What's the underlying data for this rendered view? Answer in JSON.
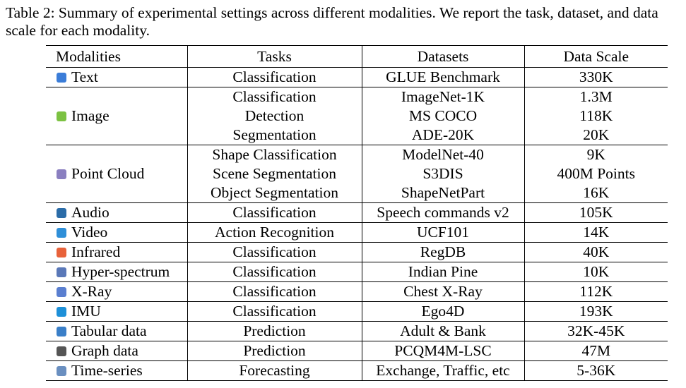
{
  "caption": "Table 2: Summary of experimental settings across different modalities. We report the task, dataset, and data scale for each modality.",
  "table": {
    "header": [
      "Modalities",
      "Tasks",
      "Datasets",
      "Data Scale"
    ],
    "groups": [
      {
        "modality": "Text",
        "tasks": [
          "Classification"
        ],
        "datasets": [
          "GLUE Benchmark"
        ],
        "scales": [
          "330K"
        ]
      },
      {
        "modality": "Image",
        "tasks": [
          "Classification",
          "Detection",
          "Segmentation"
        ],
        "datasets": [
          "ImageNet-1K",
          "MS COCO",
          "ADE-20K"
        ],
        "scales": [
          "1.3M",
          "118K",
          "20K"
        ]
      },
      {
        "modality": "Point Cloud",
        "tasks": [
          "Shape Classification",
          "Scene Segmentation",
          "Object Segmentation"
        ],
        "datasets": [
          "ModelNet-40",
          "S3DIS",
          "ShapeNetPart"
        ],
        "scales": [
          "9K",
          "400M Points",
          "16K"
        ]
      },
      {
        "modality": "Audio",
        "tasks": [
          "Classification"
        ],
        "datasets": [
          "Speech commands v2"
        ],
        "scales": [
          "105K"
        ]
      },
      {
        "modality": "Video",
        "tasks": [
          "Action Recognition"
        ],
        "datasets": [
          "UCF101"
        ],
        "scales": [
          "14K"
        ]
      },
      {
        "modality": "Infrared",
        "tasks": [
          "Classification"
        ],
        "datasets": [
          "RegDB"
        ],
        "scales": [
          "40K"
        ]
      },
      {
        "modality": "Hyper-spectrum",
        "tasks": [
          "Classification"
        ],
        "datasets": [
          "Indian Pine"
        ],
        "scales": [
          "10K"
        ]
      },
      {
        "modality": "X-Ray",
        "tasks": [
          "Classification"
        ],
        "datasets": [
          "Chest X-Ray"
        ],
        "scales": [
          "112K"
        ]
      },
      {
        "modality": "IMU",
        "tasks": [
          "Classification"
        ],
        "datasets": [
          "Ego4D"
        ],
        "scales": [
          "193K"
        ]
      },
      {
        "modality": "Tabular data",
        "tasks": [
          "Prediction"
        ],
        "datasets": [
          "Adult & Bank"
        ],
        "scales": [
          "32K-45K"
        ]
      },
      {
        "modality": "Graph data",
        "tasks": [
          "Prediction"
        ],
        "datasets": [
          "PCQM4M-LSC"
        ],
        "scales": [
          "47M"
        ]
      },
      {
        "modality": "Time-series",
        "tasks": [
          "Forecasting"
        ],
        "datasets": [
          "Exchange, Traffic, etc"
        ],
        "scales": [
          "5-36K"
        ]
      }
    ]
  }
}
